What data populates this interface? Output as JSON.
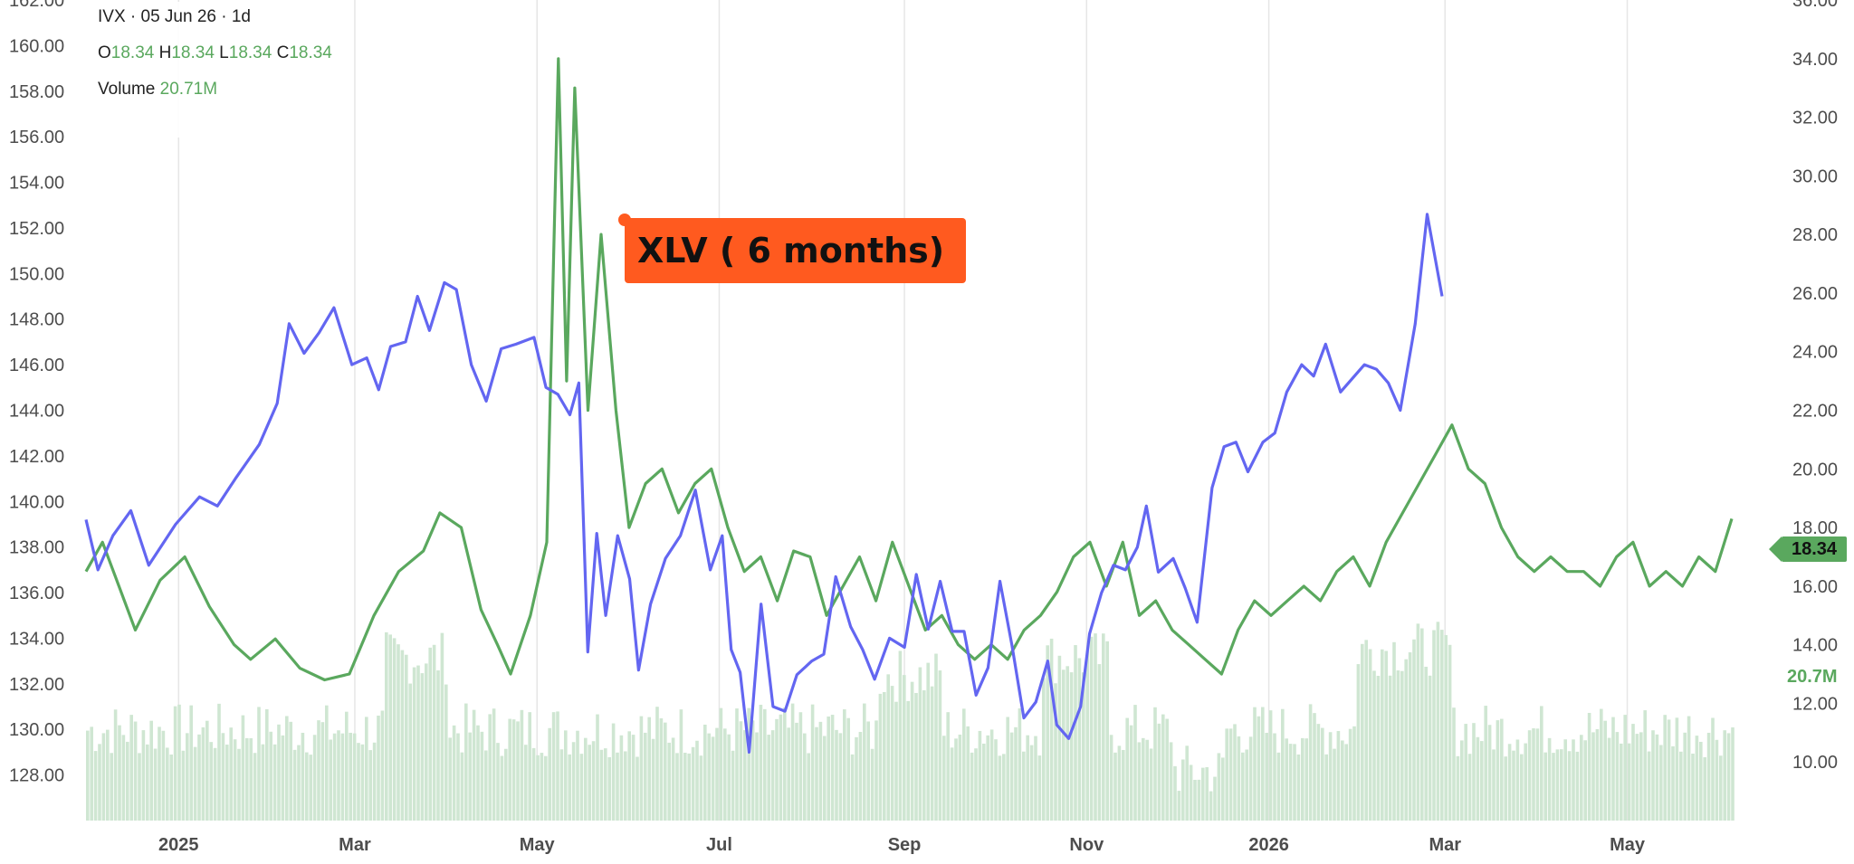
{
  "header": {
    "symbol_line": "IVX · 05 Jun 26 · 1d",
    "o_label": "O",
    "o_value": "18.34",
    "h_label": "H",
    "h_value": "18.34",
    "l_label": "L",
    "l_value": "18.34",
    "c_label": "C",
    "c_value": "18.34",
    "volume_label": "Volume",
    "volume_value": "20.71M"
  },
  "annotation": {
    "text": "XLV ( 6 months)",
    "color": "#ff5a1f"
  },
  "price_tag": {
    "text": "18.34",
    "color": "#5aa85e"
  },
  "volume_tag": {
    "text": "20.7M"
  },
  "colors": {
    "xlv_line": "#6366f1",
    "ivx_line": "#5aa85e",
    "volume_bar": "#cfe6d2",
    "grid": "#e6e6e6"
  },
  "chart_data": {
    "type": "line",
    "x_range": [
      "2024-12-01",
      "2026-06-05"
    ],
    "x_ticks": [
      {
        "date": "2025-01-01",
        "label": "2025"
      },
      {
        "date": "2025-03-01",
        "label": "Mar"
      },
      {
        "date": "2025-05-01",
        "label": "May"
      },
      {
        "date": "2025-07-01",
        "label": "Jul"
      },
      {
        "date": "2025-09-01",
        "label": "Sep"
      },
      {
        "date": "2025-11-01",
        "label": "Nov"
      },
      {
        "date": "2026-01-01",
        "label": "2026"
      },
      {
        "date": "2026-03-01",
        "label": "Mar"
      },
      {
        "date": "2026-05-01",
        "label": "May"
      }
    ],
    "left_axis": {
      "min": 126.0,
      "max": 162.0,
      "ticks": [
        "162.00",
        "160.00",
        "158.00",
        "156.00",
        "154.00",
        "152.00",
        "150.00",
        "148.00",
        "146.00",
        "144.00",
        "142.00",
        "140.00",
        "138.00",
        "136.00",
        "134.00",
        "132.00",
        "130.00",
        "128.00"
      ]
    },
    "right_axis": {
      "min": 8.0,
      "max": 36.0,
      "ticks": [
        "36.00",
        "34.00",
        "32.00",
        "30.00",
        "28.00",
        "26.00",
        "24.00",
        "22.00",
        "20.00",
        "18.00",
        "16.00",
        "14.00",
        "12.00",
        "10.00"
      ]
    },
    "grid": true,
    "series": [
      {
        "axis": "left",
        "points": [
          [
            "2024-12-01",
            139.2
          ],
          [
            "2024-12-05",
            137.0
          ],
          [
            "2024-12-10",
            138.5
          ],
          [
            "2024-12-16",
            139.6
          ],
          [
            "2024-12-22",
            137.2
          ],
          [
            "2024-12-31",
            139.0
          ],
          [
            "2025-01-08",
            140.2
          ],
          [
            "2025-01-14",
            139.8
          ],
          [
            "2025-01-20",
            141.0
          ],
          [
            "2025-01-28",
            142.5
          ],
          [
            "2025-02-03",
            144.3
          ],
          [
            "2025-02-07",
            147.8
          ],
          [
            "2025-02-12",
            146.5
          ],
          [
            "2025-02-17",
            147.4
          ],
          [
            "2025-02-22",
            148.5
          ],
          [
            "2025-02-28",
            146.0
          ],
          [
            "2025-03-05",
            146.3
          ],
          [
            "2025-03-09",
            144.9
          ],
          [
            "2025-03-13",
            146.8
          ],
          [
            "2025-03-18",
            147.0
          ],
          [
            "2025-03-22",
            149.0
          ],
          [
            "2025-03-26",
            147.5
          ],
          [
            "2025-03-31",
            149.6
          ],
          [
            "2025-04-04",
            149.3
          ],
          [
            "2025-04-09",
            146.0
          ],
          [
            "2025-04-14",
            144.4
          ],
          [
            "2025-04-19",
            146.7
          ],
          [
            "2025-04-24",
            146.9
          ],
          [
            "2025-04-30",
            147.2
          ],
          [
            "2025-05-04",
            145.0
          ],
          [
            "2025-05-08",
            144.7
          ],
          [
            "2025-05-12",
            143.8
          ],
          [
            "2025-05-15",
            145.2
          ],
          [
            "2025-05-18",
            133.4
          ],
          [
            "2025-05-21",
            138.6
          ],
          [
            "2025-05-24",
            135.0
          ],
          [
            "2025-05-28",
            138.5
          ],
          [
            "2025-06-01",
            136.6
          ],
          [
            "2025-06-04",
            132.6
          ],
          [
            "2025-06-08",
            135.5
          ],
          [
            "2025-06-13",
            137.5
          ],
          [
            "2025-06-18",
            138.5
          ],
          [
            "2025-06-23",
            140.5
          ],
          [
            "2025-06-28",
            137.0
          ],
          [
            "2025-07-02",
            138.5
          ],
          [
            "2025-07-05",
            133.5
          ],
          [
            "2025-07-08",
            132.5
          ],
          [
            "2025-07-11",
            129.0
          ],
          [
            "2025-07-15",
            135.5
          ],
          [
            "2025-07-19",
            131.0
          ],
          [
            "2025-07-23",
            130.8
          ],
          [
            "2025-07-27",
            132.4
          ],
          [
            "2025-08-01",
            133.0
          ],
          [
            "2025-08-05",
            133.3
          ],
          [
            "2025-08-09",
            136.7
          ],
          [
            "2025-08-14",
            134.5
          ],
          [
            "2025-08-18",
            133.5
          ],
          [
            "2025-08-22",
            132.2
          ],
          [
            "2025-08-27",
            134.0
          ],
          [
            "2025-09-01",
            133.6
          ],
          [
            "2025-09-05",
            136.8
          ],
          [
            "2025-09-09",
            134.4
          ],
          [
            "2025-09-13",
            136.5
          ],
          [
            "2025-09-17",
            134.3
          ],
          [
            "2025-09-21",
            134.3
          ],
          [
            "2025-09-25",
            131.5
          ],
          [
            "2025-09-29",
            132.7
          ],
          [
            "2025-10-03",
            136.5
          ],
          [
            "2025-10-07",
            133.7
          ],
          [
            "2025-10-11",
            130.5
          ],
          [
            "2025-10-15",
            131.2
          ],
          [
            "2025-10-19",
            133.0
          ],
          [
            "2025-10-22",
            130.2
          ],
          [
            "2025-10-26",
            129.6
          ],
          [
            "2025-10-30",
            131.0
          ],
          [
            "2025-11-02",
            134.2
          ],
          [
            "2025-11-06",
            136.0
          ],
          [
            "2025-11-10",
            137.2
          ],
          [
            "2025-11-14",
            137.0
          ],
          [
            "2025-11-18",
            138.0
          ],
          [
            "2025-11-21",
            139.8
          ],
          [
            "2025-11-25",
            136.9
          ],
          [
            "2025-11-30",
            137.5
          ],
          [
            "2025-12-04",
            136.2
          ],
          [
            "2025-12-08",
            134.7
          ],
          [
            "2025-12-13",
            140.6
          ],
          [
            "2025-12-17",
            142.4
          ],
          [
            "2025-12-21",
            142.6
          ],
          [
            "2025-12-25",
            141.3
          ],
          [
            "2025-12-30",
            142.6
          ],
          [
            "2026-01-03",
            143.0
          ],
          [
            "2026-01-07",
            144.8
          ],
          [
            "2026-01-12",
            146.0
          ],
          [
            "2026-01-16",
            145.5
          ],
          [
            "2026-01-20",
            146.9
          ],
          [
            "2026-01-25",
            144.8
          ],
          [
            "2026-01-29",
            145.4
          ],
          [
            "2026-02-02",
            146.0
          ],
          [
            "2026-02-06",
            145.8
          ],
          [
            "2026-02-10",
            145.2
          ],
          [
            "2026-02-14",
            144.0
          ],
          [
            "2026-02-19",
            147.8
          ],
          [
            "2026-02-23",
            152.6
          ],
          [
            "2026-02-28",
            149.0
          ]
        ]
      }
    ]
  }
}
